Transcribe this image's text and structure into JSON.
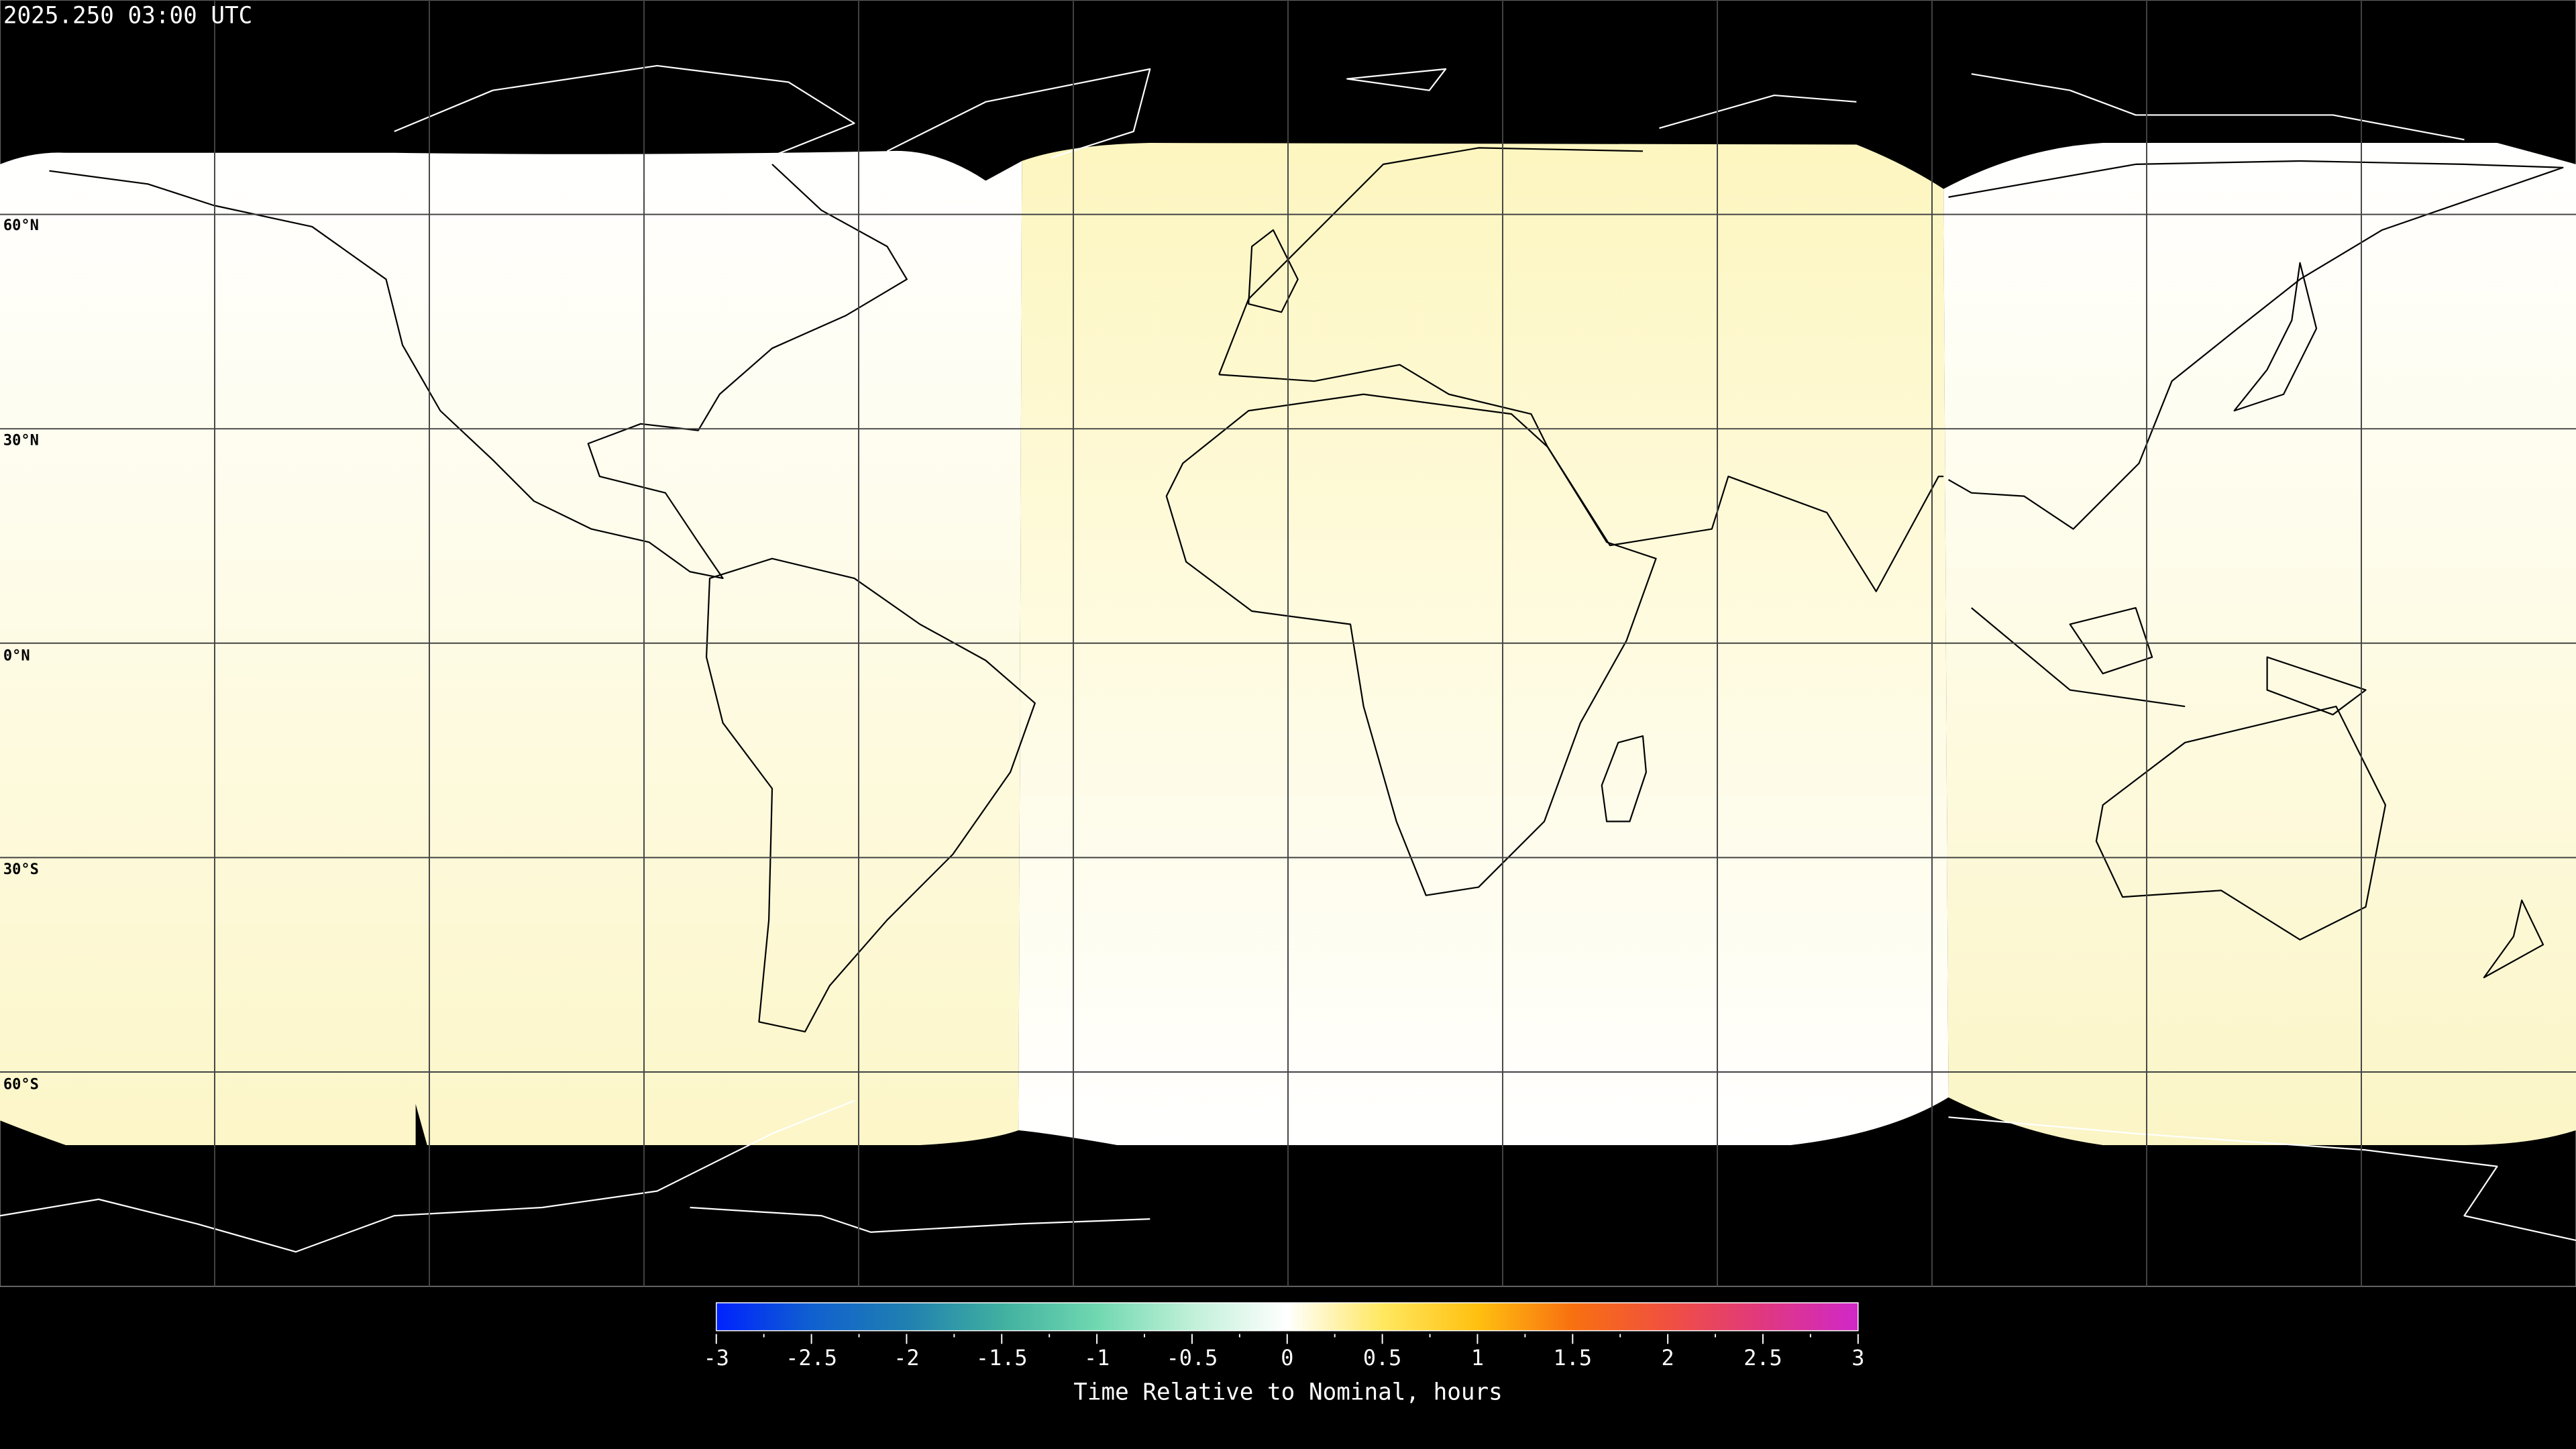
{
  "title": "2025.250 03:00 UTC",
  "map": {
    "projection": "equirectangular",
    "lon_range": [
      -180,
      180
    ],
    "lat_range": [
      -90,
      90
    ],
    "gridline_spacing_deg": 30,
    "lat_labels": [
      "60°N",
      "30°N",
      "0°N",
      "30°S",
      "60°S"
    ],
    "background_color": "#000000",
    "coastline_color_on_data": "#000000",
    "coastline_color_on_background": "#ffffff"
  },
  "colorbar": {
    "label": "Time Relative to Nominal, hours",
    "range": [
      -3,
      3
    ],
    "ticks": [
      "-3",
      "-2.5",
      "-2",
      "-1.5",
      "-1",
      "-0.5",
      "0",
      "0.5",
      "1",
      "1.5",
      "2",
      "2.5",
      "3"
    ],
    "colormap": [
      {
        "value": -3,
        "color": "#0022ff"
      },
      {
        "value": -2.5,
        "color": "#1060d0"
      },
      {
        "value": -2,
        "color": "#2080b0"
      },
      {
        "value": -1.5,
        "color": "#40b0a0"
      },
      {
        "value": -1,
        "color": "#70d8b0"
      },
      {
        "value": -0.5,
        "color": "#c0f0d8"
      },
      {
        "value": 0,
        "color": "#ffffff"
      },
      {
        "value": 0.5,
        "color": "#ffe860"
      },
      {
        "value": 1,
        "color": "#ffc010"
      },
      {
        "value": 1.5,
        "color": "#f87010"
      },
      {
        "value": 2,
        "color": "#f05040"
      },
      {
        "value": 2.5,
        "color": "#e03880"
      },
      {
        "value": 3,
        "color": "#d028c8"
      }
    ]
  }
}
